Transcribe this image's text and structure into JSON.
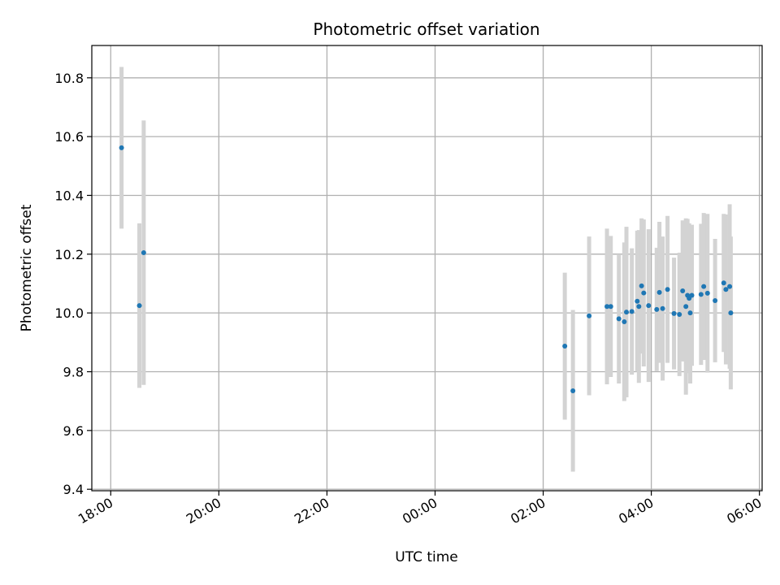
{
  "chart_data": {
    "type": "scatter",
    "title": "Photometric offset variation",
    "xlabel": "UTC time",
    "ylabel": "Photometric offset",
    "x_unit": "hours",
    "xlim": [
      17.65,
      30.05
    ],
    "ylim": [
      9.395,
      10.91
    ],
    "x_ticks": [
      {
        "value": 18,
        "label": "18:00"
      },
      {
        "value": 20,
        "label": "20:00"
      },
      {
        "value": 22,
        "label": "22:00"
      },
      {
        "value": 24,
        "label": "00:00"
      },
      {
        "value": 26,
        "label": "02:00"
      },
      {
        "value": 28,
        "label": "04:00"
      },
      {
        "value": 30,
        "label": "06:00"
      }
    ],
    "y_ticks": [
      9.4,
      9.6,
      9.8,
      10.0,
      10.2,
      10.4,
      10.6,
      10.8
    ],
    "grid": true,
    "colors": {
      "point": "#1f77b4",
      "error_bar": "#d3d3d3",
      "grid": "#b0b0b0"
    },
    "series": [
      {
        "points": [
          {
            "x": 18.2,
            "y": 10.562,
            "err": 0.275
          },
          {
            "x": 18.53,
            "y": 10.025,
            "err": 0.28
          },
          {
            "x": 18.61,
            "y": 10.205,
            "err": 0.45
          },
          {
            "x": 26.4,
            "y": 9.887,
            "err": 0.25
          },
          {
            "x": 26.55,
            "y": 9.735,
            "err": 0.275
          },
          {
            "x": 26.85,
            "y": 9.99,
            "err": 0.27
          },
          {
            "x": 27.18,
            "y": 10.022,
            "err": 0.265
          },
          {
            "x": 27.25,
            "y": 10.022,
            "err": 0.24
          },
          {
            "x": 27.4,
            "y": 9.98,
            "err": 0.22
          },
          {
            "x": 27.5,
            "y": 9.97,
            "err": 0.27
          },
          {
            "x": 27.54,
            "y": 10.003,
            "err": 0.29
          },
          {
            "x": 27.64,
            "y": 10.005,
            "err": 0.215
          },
          {
            "x": 27.74,
            "y": 10.04,
            "err": 0.24
          },
          {
            "x": 27.77,
            "y": 10.022,
            "err": 0.26
          },
          {
            "x": 27.82,
            "y": 10.092,
            "err": 0.23
          },
          {
            "x": 27.86,
            "y": 10.068,
            "err": 0.25
          },
          {
            "x": 27.95,
            "y": 10.025,
            "err": 0.26
          },
          {
            "x": 28.1,
            "y": 10.012,
            "err": 0.21
          },
          {
            "x": 28.15,
            "y": 10.07,
            "err": 0.24
          },
          {
            "x": 28.21,
            "y": 10.015,
            "err": 0.245
          },
          {
            "x": 28.3,
            "y": 10.08,
            "err": 0.25
          },
          {
            "x": 28.42,
            "y": 9.998,
            "err": 0.19
          },
          {
            "x": 28.52,
            "y": 9.995,
            "err": 0.21
          },
          {
            "x": 28.58,
            "y": 10.075,
            "err": 0.24
          },
          {
            "x": 28.64,
            "y": 10.022,
            "err": 0.3
          },
          {
            "x": 28.67,
            "y": 10.06,
            "err": 0.26
          },
          {
            "x": 28.7,
            "y": 10.05,
            "err": 0.255
          },
          {
            "x": 28.72,
            "y": 10.0,
            "err": 0.24
          },
          {
            "x": 28.75,
            "y": 10.06,
            "err": 0.24
          },
          {
            "x": 28.92,
            "y": 10.063,
            "err": 0.24
          },
          {
            "x": 28.97,
            "y": 10.09,
            "err": 0.25
          },
          {
            "x": 29.04,
            "y": 10.067,
            "err": 0.27
          },
          {
            "x": 29.18,
            "y": 10.042,
            "err": 0.21
          },
          {
            "x": 29.34,
            "y": 10.102,
            "err": 0.235
          },
          {
            "x": 29.38,
            "y": 10.08,
            "err": 0.255
          },
          {
            "x": 29.45,
            "y": 10.09,
            "err": 0.28
          },
          {
            "x": 29.47,
            "y": 10.0,
            "err": 0.26
          }
        ]
      }
    ]
  }
}
